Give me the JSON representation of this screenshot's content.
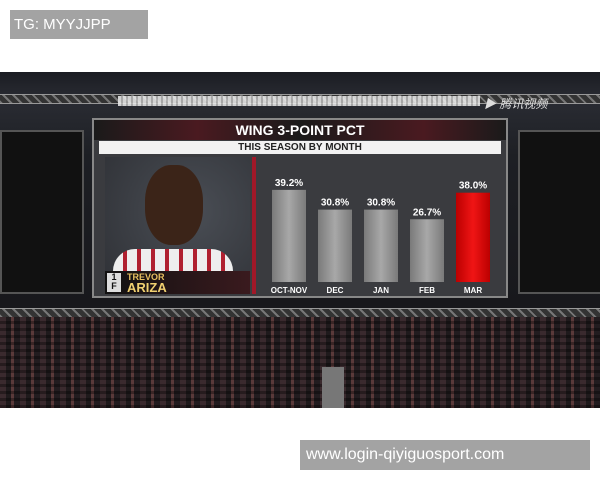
{
  "overlay_top": "TG: MYYJJPP",
  "overlay_bottom": "www.login-qiyiguosport.com",
  "watermark_logo": "腾讯视频",
  "player": {
    "number": "1",
    "position": "F",
    "first_name": "TREVOR",
    "last_name": "ARIZA"
  },
  "colors": {
    "bar": "#9a9a9a",
    "highlight": "#e01010",
    "accent": "#a01828"
  },
  "chart_data": {
    "type": "bar",
    "title": "WING 3-POINT PCT",
    "subtitle": "THIS SEASON BY MONTH",
    "categories": [
      "OCT-NOV",
      "DEC",
      "JAN",
      "FEB",
      "MAR"
    ],
    "values": [
      39.2,
      30.8,
      30.8,
      26.7,
      38.0
    ],
    "labels": [
      "39.2%",
      "30.8%",
      "30.8%",
      "26.7%",
      "38.0%"
    ],
    "highlight": "MAR",
    "ylim": [
      0,
      45
    ],
    "grid": false
  }
}
